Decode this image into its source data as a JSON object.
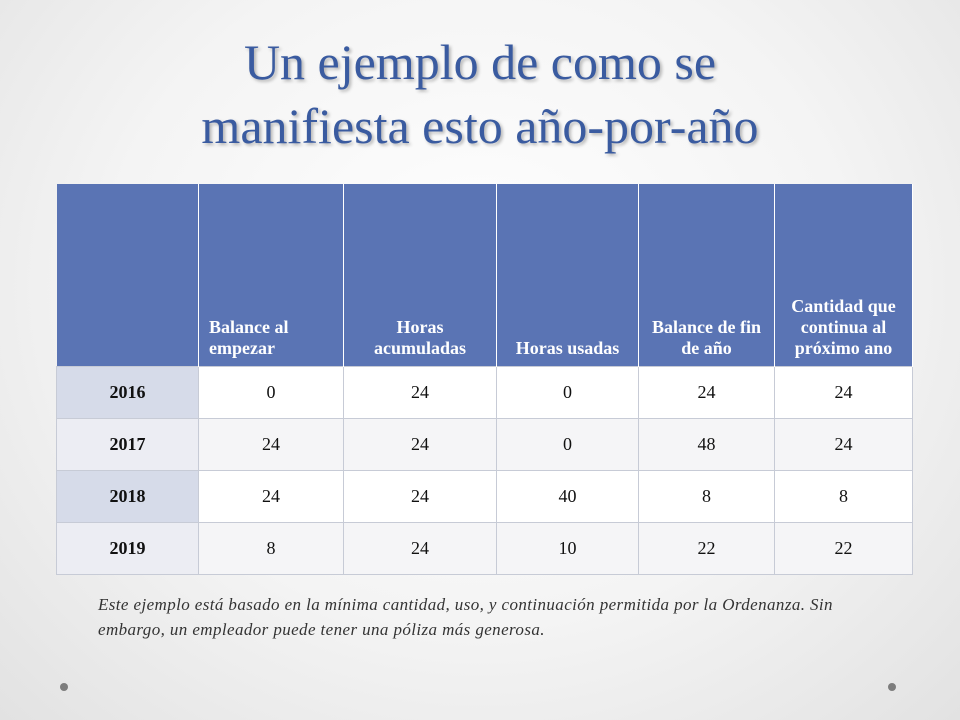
{
  "slide": {
    "title_line1": "Un ejemplo de como se",
    "title_line2": "manifiesta esto año-por-año"
  },
  "table": {
    "headers": [
      "",
      "Balance al empezar",
      "Horas acumuladas",
      "Horas usadas",
      "Balance de fin de año",
      "Cantidad que continua al próximo ano"
    ],
    "rows": [
      [
        "2016",
        "0",
        "24",
        "0",
        "24",
        "24"
      ],
      [
        "2017",
        "24",
        "24",
        "0",
        "48",
        "24"
      ],
      [
        "2018",
        "24",
        "24",
        "40",
        "8",
        "8"
      ],
      [
        "2019",
        "8",
        "24",
        "10",
        "22",
        "22"
      ]
    ]
  },
  "footnote": "Este ejemplo está basado en la mínima cantidad, uso, y continuación permitida por la Ordenanza. Sin embargo, un empleador puede tener una póliza más generosa.",
  "colors": {
    "title": "#3a5ba0",
    "header_bg": "#5a74b4"
  }
}
